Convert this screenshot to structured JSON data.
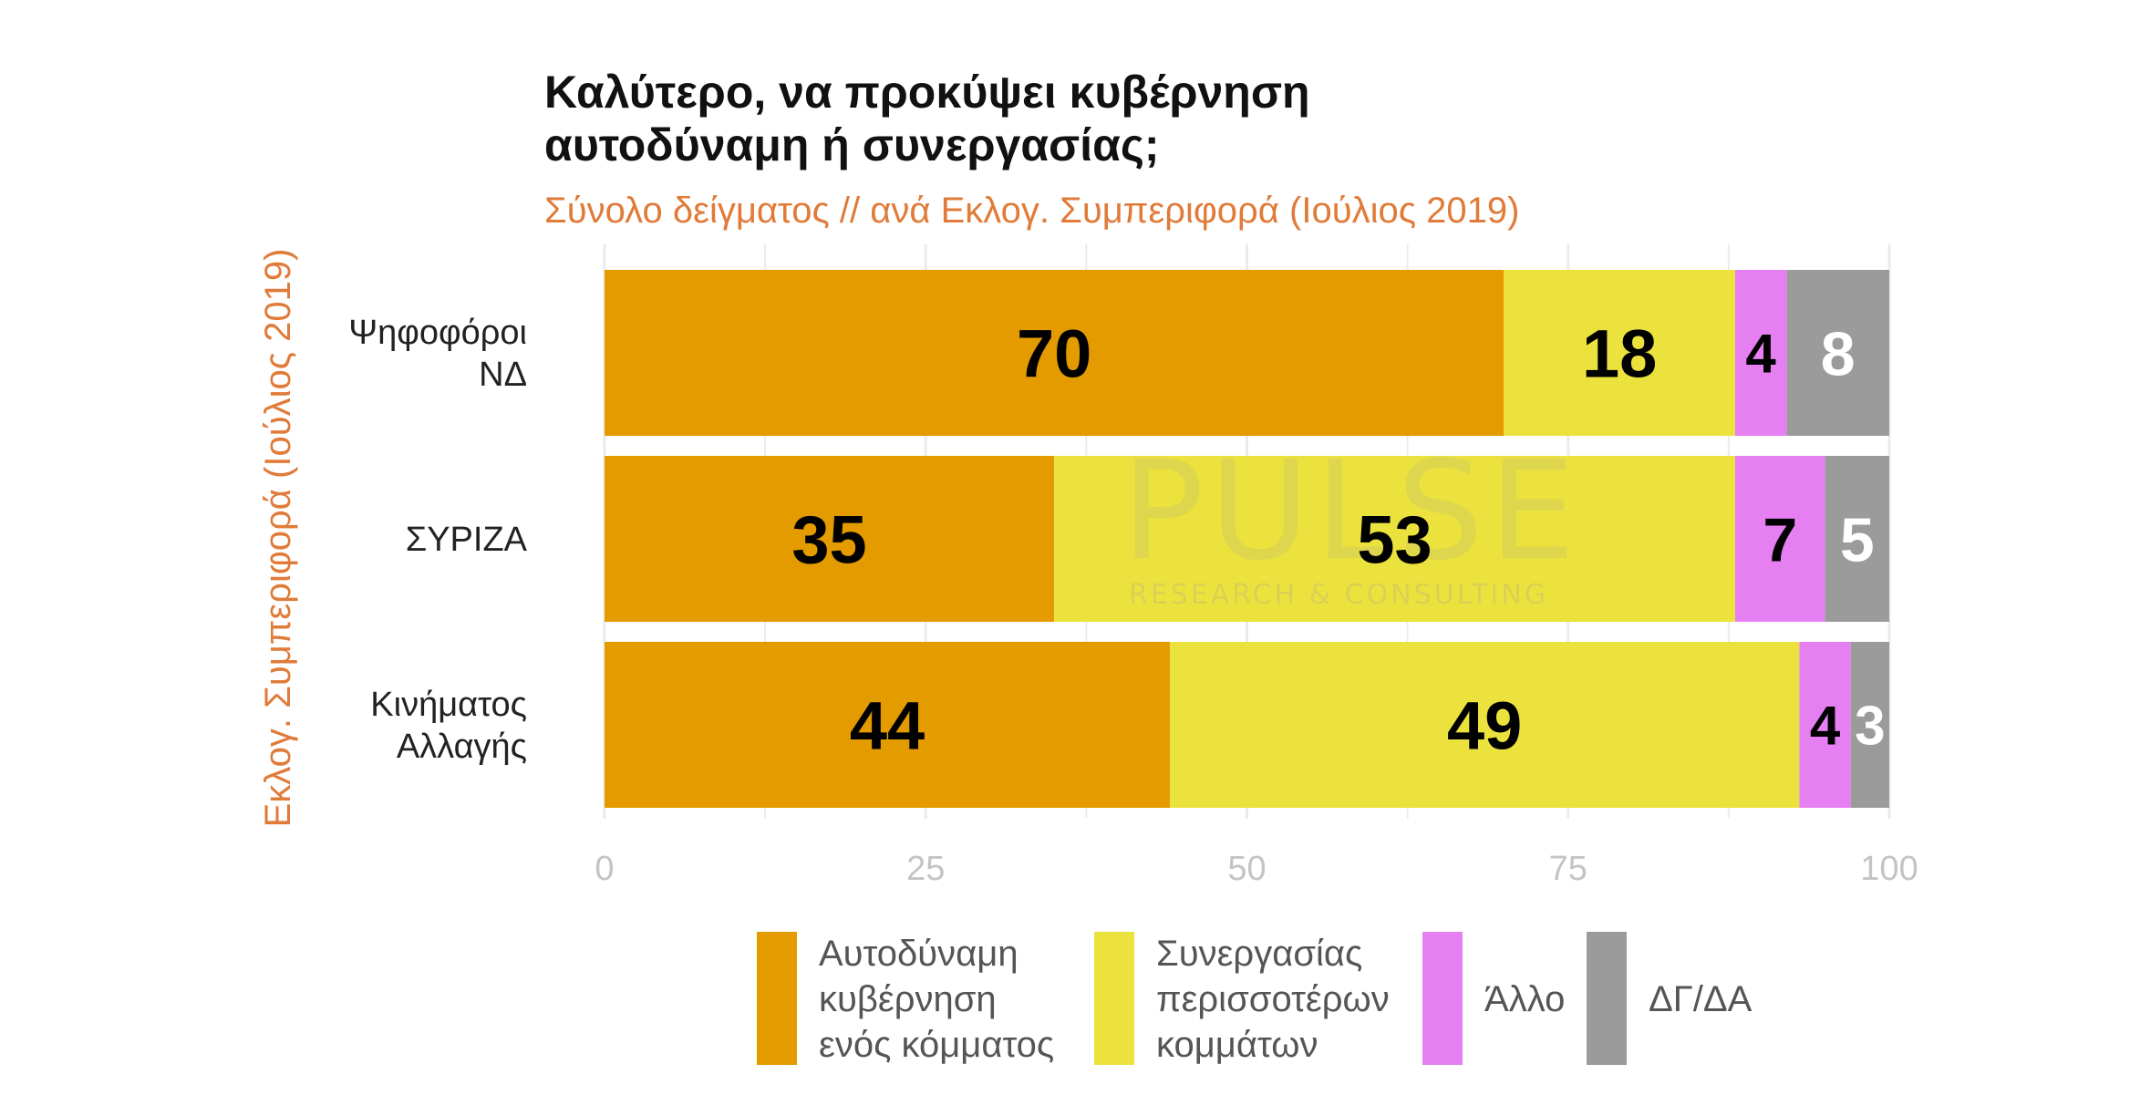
{
  "chart_data": {
    "type": "bar",
    "orientation": "horizontal",
    "stacked": true,
    "title_lines": [
      "Καλύτερο, να προκύψει κυβέρνηση",
      "αυτοδύναμη ή συνεργασίας;"
    ],
    "subtitle": "Σύνολο δείγματος // ανά Εκλογ. Συμπεριφορά (Ιούλιος 2019)",
    "ylabel": "Εκλογ. Συμπεριφορά (Ιούλιος 2019)",
    "xlabel": "",
    "xlim": [
      0,
      100
    ],
    "x_ticks": [
      "0",
      "25",
      "50",
      "75",
      "100"
    ],
    "grid": true,
    "legend_position": "bottom",
    "categories": [
      {
        "lines": [
          "Ψηφοφόροι",
          "ΝΔ"
        ]
      },
      {
        "lines": [
          "ΣΥΡΙΖΑ"
        ]
      },
      {
        "lines": [
          "Κινήματος",
          "Αλλαγής"
        ]
      }
    ],
    "series": [
      {
        "name_lines": [
          "Αυτοδύναμη",
          "κυβέρνηση",
          "ενός κόμματος"
        ],
        "color": "#e39b00",
        "label_color": "#000000",
        "values": [
          70,
          35,
          44
        ]
      },
      {
        "name_lines": [
          "Συνεργασίας",
          "περισσοτέρων",
          "κομμάτων"
        ],
        "color": "#ece23e",
        "label_color": "#000000",
        "values": [
          18,
          53,
          49
        ]
      },
      {
        "name_lines": [
          "Άλλο"
        ],
        "color": "#e680f2",
        "label_color": "#000000",
        "values": [
          4,
          7,
          4
        ]
      },
      {
        "name_lines": [
          "ΔΓ/ΔΑ"
        ],
        "color": "#9b9b9b",
        "label_color": "#ffffff",
        "values": [
          8,
          5,
          3
        ]
      }
    ]
  },
  "colors": {
    "title": "#111111",
    "subtitle": "#e07b39",
    "axis_title": "#e07b39",
    "grid": "#ebebeb",
    "tick": "#c4c4c4"
  },
  "watermark": {
    "brand": "PULSE",
    "tagline": "RESEARCH & CONSULTING"
  }
}
